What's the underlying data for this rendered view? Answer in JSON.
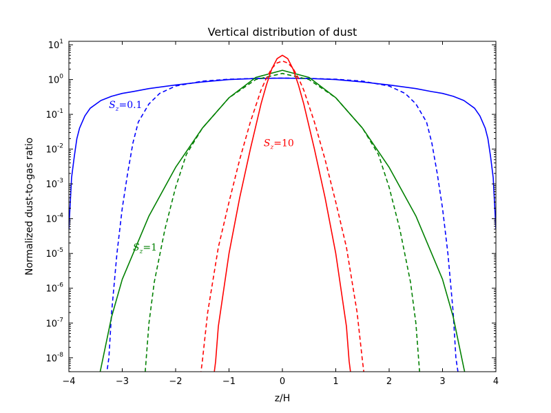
{
  "chart_data": {
    "type": "line",
    "title": "Vertical distribution of dust",
    "xlabel": "z/H",
    "ylabel": "Normalized dust-to-gas ratio",
    "xlim": [
      -4,
      4
    ],
    "ylim_log10": [
      -8.4,
      1.1
    ],
    "y_scale": "log",
    "grid": false,
    "x_ticks": [
      "−4",
      "−3",
      "−2",
      "−1",
      "0",
      "1",
      "2",
      "3",
      "4"
    ],
    "y_tick_exponents": [
      "1",
      "0",
      "-1",
      "-2",
      "-3",
      "-4",
      "-5",
      "-6",
      "-7",
      "-8"
    ],
    "y_tick_base": "10",
    "annotations": [
      {
        "var": "S",
        "sub": "z",
        "eq": "=0.1",
        "color": "#0000ff",
        "x": -3.25,
        "y": 0.15
      },
      {
        "var": "S",
        "sub": "z",
        "eq": "=1",
        "color": "#008000",
        "x": -2.8,
        "y": 1.2e-05
      },
      {
        "var": "S",
        "sub": "z",
        "eq": "=10",
        "color": "#ff0000",
        "x": -0.35,
        "y": 0.012
      }
    ],
    "series": [
      {
        "color": "#0000ff",
        "dash": "solid",
        "x": [
          0,
          0.5,
          1,
          1.5,
          2,
          2.5,
          2.8,
          3,
          3.2,
          3.4,
          3.6,
          3.7,
          3.8,
          3.85,
          3.9,
          3.95,
          4.0
        ],
        "y": [
          1.1,
          1.07,
          1.0,
          0.85,
          0.7,
          0.55,
          0.45,
          0.4,
          0.33,
          0.25,
          0.15,
          0.09,
          0.04,
          0.02,
          0.006,
          0.0015,
          5e-05
        ]
      },
      {
        "color": "#0000ff",
        "dash": "dashed",
        "x": [
          0,
          0.5,
          1,
          1.5,
          2,
          2.3,
          2.5,
          2.7,
          2.8,
          2.9,
          3.0,
          3.1,
          3.2,
          3.25,
          3.3
        ],
        "y": [
          1.1,
          1.08,
          1.02,
          0.9,
          0.65,
          0.4,
          0.2,
          0.06,
          0.015,
          0.002,
          0.0002,
          1e-05,
          2e-07,
          1e-08,
          3e-09
        ]
      },
      {
        "color": "#008000",
        "dash": "solid",
        "x": [
          0,
          0.5,
          1,
          1.5,
          2,
          2.5,
          3,
          3.2,
          3.4,
          3.5
        ],
        "y": [
          1.85,
          1.15,
          0.3,
          0.04,
          0.003,
          0.00012,
          1.8e-06,
          1.5e-07,
          5e-09,
          1e-09
        ]
      },
      {
        "color": "#008000",
        "dash": "dashed",
        "x": [
          0,
          0.5,
          1,
          1.5,
          1.8,
          2,
          2.2,
          2.4,
          2.5,
          2.6
        ],
        "y": [
          1.5,
          1.0,
          0.3,
          0.04,
          0.007,
          0.0008,
          5e-05,
          1.5e-06,
          1e-07,
          1e-09
        ]
      },
      {
        "color": "#ff0000",
        "dash": "solid",
        "x": [
          0,
          0.1,
          0.2,
          0.3,
          0.4,
          0.6,
          0.8,
          1.0,
          1.2,
          1.25,
          1.3
        ],
        "y": [
          5.0,
          4.0,
          2.0,
          0.7,
          0.2,
          0.01,
          0.0004,
          1e-05,
          8e-08,
          8e-09,
          2e-09
        ]
      },
      {
        "color": "#ff0000",
        "dash": "dashed",
        "x": [
          0,
          0.1,
          0.2,
          0.3,
          0.4,
          0.6,
          0.8,
          1.0,
          1.2,
          1.4,
          1.5,
          1.55
        ],
        "y": [
          3.4,
          3.0,
          2.1,
          1.1,
          0.5,
          0.06,
          0.005,
          0.0003,
          1.5e-05,
          2e-07,
          8e-09,
          2e-09
        ]
      }
    ]
  }
}
